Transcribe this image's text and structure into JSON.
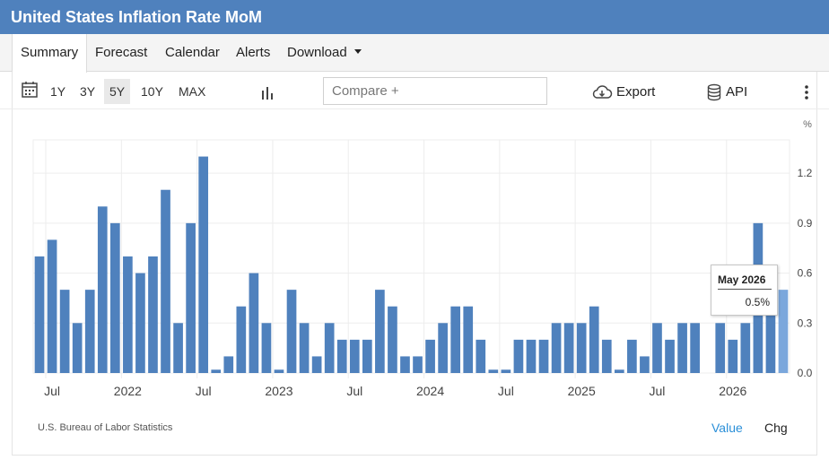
{
  "header": {
    "title": "United States Inflation Rate MoM"
  },
  "tabs": [
    {
      "label": "Summary"
    },
    {
      "label": "Forecast"
    },
    {
      "label": "Calendar"
    },
    {
      "label": "Alerts"
    },
    {
      "label": "Download"
    }
  ],
  "toolbar": {
    "ranges": [
      "1Y",
      "3Y",
      "5Y",
      "10Y",
      "MAX"
    ],
    "active_range": "5Y",
    "compare_placeholder": "Compare +",
    "export_label": "Export",
    "api_label": "API"
  },
  "colors": {
    "bar": "#4f81bd",
    "bar_highlight": "#7ba7dc",
    "header": "#4f81bd",
    "link": "#2a8fd8"
  },
  "chart_data": {
    "type": "bar",
    "unit_label": "%",
    "categories": [
      "2021-06",
      "2021-07",
      "2021-08",
      "2021-09",
      "2021-10",
      "2021-11",
      "2021-12",
      "2022-01",
      "2022-02",
      "2022-03",
      "2022-04",
      "2022-05",
      "2022-06",
      "2022-07",
      "2022-08",
      "2022-09",
      "2022-10",
      "2022-11",
      "2022-12",
      "2023-01",
      "2023-02",
      "2023-03",
      "2023-04",
      "2023-05",
      "2023-06",
      "2023-07",
      "2023-08",
      "2023-09",
      "2023-10",
      "2023-11",
      "2023-12",
      "2024-01",
      "2024-02",
      "2024-03",
      "2024-04",
      "2024-05",
      "2024-06",
      "2024-07",
      "2024-08",
      "2024-09",
      "2024-10",
      "2024-11",
      "2024-12",
      "2025-01",
      "2025-02",
      "2025-03",
      "2025-04",
      "2025-05",
      "2025-06",
      "2025-07",
      "2025-08",
      "2025-09",
      "2025-10",
      "2025-11",
      "2025-12",
      "2026-01",
      "2026-02",
      "2026-03",
      "2026-04",
      "2026-05"
    ],
    "values": [
      0.7,
      0.8,
      0.5,
      0.3,
      0.5,
      1.0,
      0.9,
      0.7,
      0.6,
      0.7,
      1.1,
      0.3,
      0.9,
      1.3,
      0.0,
      0.1,
      0.4,
      0.6,
      0.3,
      0.0,
      0.5,
      0.3,
      0.1,
      0.3,
      0.2,
      0.2,
      0.2,
      0.5,
      0.4,
      0.1,
      0.1,
      0.2,
      0.3,
      0.4,
      0.4,
      0.2,
      0.0,
      0.0,
      0.2,
      0.2,
      0.2,
      0.3,
      0.3,
      0.3,
      0.4,
      0.2,
      0.0,
      0.2,
      0.1,
      0.3,
      0.2,
      0.3,
      0.3,
      null,
      0.3,
      0.2,
      0.3,
      0.9,
      0.6,
      0.5
    ],
    "highlight_index": 59,
    "ylim": [
      0,
      1.4
    ],
    "yticks": [
      "0.0",
      "0.3",
      "0.6",
      "0.9",
      "1.2"
    ],
    "xtick_labels": [
      {
        "label": "Jul",
        "at": "2021-07"
      },
      {
        "label": "2022",
        "at": "2022-01"
      },
      {
        "label": "Jul",
        "at": "2022-07"
      },
      {
        "label": "2023",
        "at": "2023-01"
      },
      {
        "label": "Jul",
        "at": "2023-07"
      },
      {
        "label": "2024",
        "at": "2024-01"
      },
      {
        "label": "Jul",
        "at": "2024-07"
      },
      {
        "label": "2025",
        "at": "2025-01"
      },
      {
        "label": "Jul",
        "at": "2025-07"
      },
      {
        "label": "2026",
        "at": "2026-01"
      }
    ],
    "grid": true,
    "tooltip": {
      "date": "May 2026",
      "value": "0.5%"
    }
  },
  "footer": {
    "source": "U.S. Bureau of Labor Statistics",
    "value_label": "Value",
    "chg_label": "Chg"
  }
}
